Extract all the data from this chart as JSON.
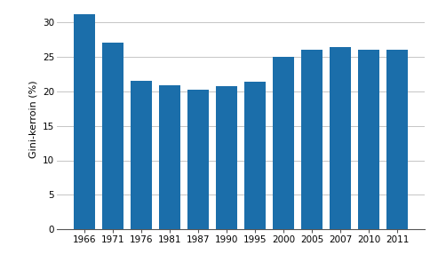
{
  "years": [
    "1966",
    "1971",
    "1976",
    "1981",
    "1987",
    "1990",
    "1995",
    "2000",
    "2005",
    "2007",
    "2010",
    "2011"
  ],
  "values": [
    31.1,
    27.0,
    21.5,
    20.9,
    20.2,
    20.7,
    21.4,
    25.0,
    26.0,
    26.4,
    26.0,
    26.0
  ],
  "bar_color": "#1B6EAA",
  "ylabel": "Gini-kerroin (%)",
  "ylim": [
    0,
    32
  ],
  "yticks": [
    0,
    5,
    10,
    15,
    20,
    25,
    30
  ],
  "grid_color": "#bbbbbb",
  "background_color": "#ffffff",
  "bar_width": 0.75,
  "ylabel_fontsize": 8,
  "tick_fontsize": 7.5
}
